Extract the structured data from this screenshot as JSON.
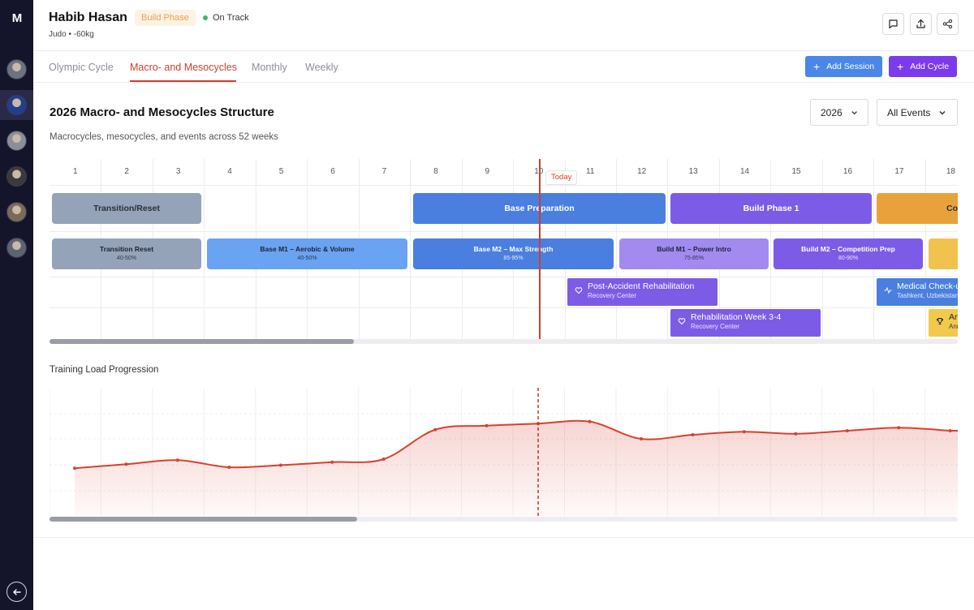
{
  "sidebar": {
    "logo": "M",
    "avatars": [
      {
        "name": "avatar-1",
        "bg": "#6d7280"
      },
      {
        "name": "avatar-2",
        "bg": "#1f3f8f"
      },
      {
        "name": "avatar-3",
        "bg": "#8a8f99"
      },
      {
        "name": "avatar-4",
        "bg": "#3a3a3a"
      },
      {
        "name": "avatar-5",
        "bg": "#7b6a5a"
      },
      {
        "name": "avatar-6",
        "bg": "#5c6470"
      }
    ]
  },
  "header": {
    "name": "Habib Hasan",
    "phase_badge": "Build Phase",
    "status": "On Track",
    "sport": "Judo",
    "weight": "-60kg"
  },
  "tabs": [
    {
      "label": "Olympic Cycle"
    },
    {
      "label": "Macro- and Mesocycles"
    },
    {
      "label": "Monthly"
    },
    {
      "label": "Weekly"
    }
  ],
  "actions": {
    "add_session": "Add Session",
    "add_cycle": "Add Cycle"
  },
  "section": {
    "title": "2026 Macro- and Mesocycles Structure",
    "description": "Macrocycles, mesocycles, and events across 52 weeks",
    "year": "2026",
    "filter": "All Events"
  },
  "weeks": [
    "1",
    "2",
    "3",
    "4",
    "5",
    "6",
    "7",
    "8",
    "9",
    "10",
    "11",
    "12",
    "13",
    "14",
    "15",
    "16",
    "17",
    "18"
  ],
  "today_label": "Today",
  "macrocycles": [
    {
      "label": "Transition/Reset",
      "color": "#94a3b8",
      "dark": true
    },
    {
      "label": "Base Preparation",
      "color": "#4a7fe0"
    },
    {
      "label": "Build Phase 1",
      "color": "#7c5ce6"
    },
    {
      "label": "Competition",
      "color": "#e9a23b",
      "dark": true
    }
  ],
  "mesocycles": [
    {
      "label": "Transition Reset",
      "pct": "40-50%",
      "color": "#94a3b8",
      "dark": true
    },
    {
      "label": "Base M1 – Aerobic & Volume",
      "pct": "40-50%",
      "color": "#6aa3f2",
      "dark": true
    },
    {
      "label": "Base M2 – Max Strength",
      "pct": "85-95%",
      "color": "#4a7fe0"
    },
    {
      "label": "Build M1 – Power Intro",
      "pct": "75-85%",
      "color": "#a38af0",
      "dark": true
    },
    {
      "label": "Build M2 – Competition Prep",
      "pct": "80-90%",
      "color": "#7c5ce6"
    },
    {
      "label": "",
      "pct": "",
      "color": "#f2c24f"
    }
  ],
  "events": [
    {
      "title": "Post-Accident Rehabilitation",
      "subtitle": "Recovery Center",
      "color": "#7c5ce6",
      "icon": "heart-icon"
    },
    {
      "title": "Medical Check-up",
      "subtitle": "Tashkent, Uzbekistan",
      "color": "#4a7fe0",
      "icon": "activity-icon"
    },
    {
      "title": "Rehabilitation Week 3-4",
      "subtitle": "Recovery Center",
      "color": "#7c5ce6",
      "icon": "heart-icon"
    },
    {
      "title": "Annual Competition",
      "subtitle": "Annual",
      "color": "#f2c94c",
      "icon": "trophy-icon",
      "dark": true
    }
  ],
  "chart_data": {
    "type": "area",
    "title": "Training Load Progression",
    "x": [
      1,
      2,
      3,
      4,
      5,
      6,
      7,
      8,
      9,
      10,
      11,
      12,
      13,
      14,
      15,
      16,
      17,
      18
    ],
    "series": [
      {
        "values": [
          31,
          35,
          39,
          32,
          34,
          37,
          40,
          69,
          73,
          75,
          77,
          60,
          64,
          67,
          65,
          68,
          71,
          68
        ]
      }
    ],
    "ylim": [
      0,
      100
    ],
    "today_week": 10,
    "color": "#d8412f",
    "grid": true
  }
}
